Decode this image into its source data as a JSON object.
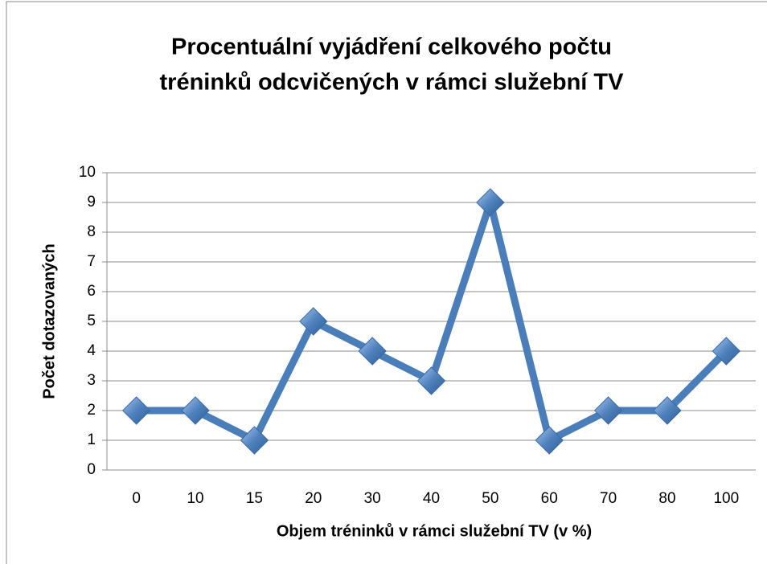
{
  "chart_data": {
    "type": "line",
    "title": [
      "Procentuální vyjádření celkového počtu",
      "tréninků odcvičených v rámci služební TV"
    ],
    "x_label": "Objem tréninků v rámci služební TV (v %)",
    "y_label": "Počet dotazovaných",
    "categories": [
      "0",
      "10",
      "15",
      "20",
      "30",
      "40",
      "50",
      "60",
      "70",
      "80",
      "100"
    ],
    "values": [
      2,
      2,
      1,
      5,
      4,
      3,
      9,
      1,
      2,
      2,
      4
    ],
    "color": "#4a7ebb",
    "ylim": [
      0,
      10
    ],
    "yticks": [
      0,
      1,
      2,
      3,
      4,
      5,
      6,
      7,
      8,
      9,
      10
    ],
    "grid": true
  }
}
